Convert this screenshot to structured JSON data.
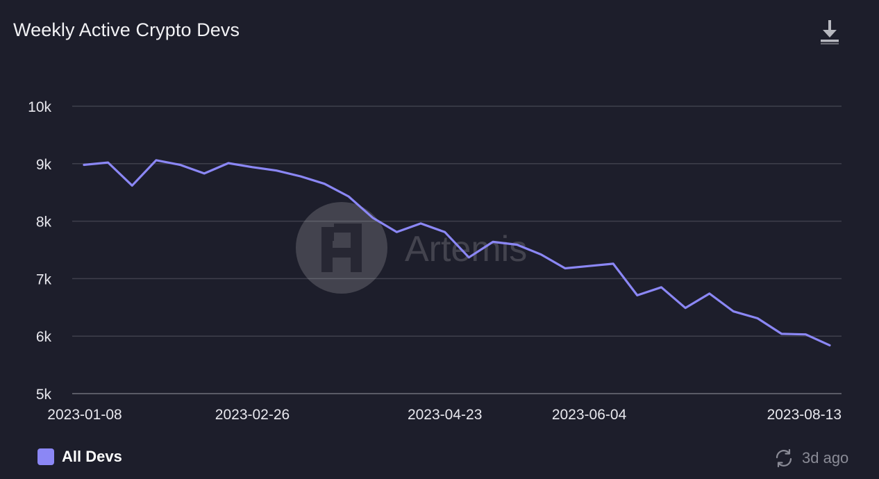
{
  "header": {
    "title": "Weekly Active Crypto Devs",
    "download_icon": "download-icon"
  },
  "watermark": {
    "text": "Artemis",
    "logo_icon": "artemis-logo-icon"
  },
  "chart_data": {
    "type": "line",
    "title": "Weekly Active Crypto Devs",
    "xlabel": "",
    "ylabel": "",
    "ylim": [
      5000,
      10000
    ],
    "y_ticks": [
      {
        "value": 10000,
        "label": "10k"
      },
      {
        "value": 9000,
        "label": "9k"
      },
      {
        "value": 8000,
        "label": "8k"
      },
      {
        "value": 7000,
        "label": "7k"
      },
      {
        "value": 6000,
        "label": "6k"
      },
      {
        "value": 5000,
        "label": "5k"
      }
    ],
    "x_tick_labels": [
      "2023-01-08",
      "2023-02-26",
      "2023-04-23",
      "2023-06-04",
      "2023-08-13"
    ],
    "grid": true,
    "legend_position": "bottom-left",
    "x": [
      "2023-01-08",
      "2023-01-15",
      "2023-01-22",
      "2023-01-29",
      "2023-02-05",
      "2023-02-12",
      "2023-02-19",
      "2023-02-26",
      "2023-03-05",
      "2023-03-12",
      "2023-03-19",
      "2023-03-26",
      "2023-04-02",
      "2023-04-09",
      "2023-04-16",
      "2023-04-23",
      "2023-04-30",
      "2023-05-07",
      "2023-05-14",
      "2023-05-21",
      "2023-05-28",
      "2023-06-04",
      "2023-06-11",
      "2023-06-18",
      "2023-06-25",
      "2023-07-02",
      "2023-07-09",
      "2023-07-16",
      "2023-07-23",
      "2023-07-30",
      "2023-08-06",
      "2023-08-13"
    ],
    "series": [
      {
        "name": "All Devs",
        "color": "#8b87f5",
        "values": [
          8980,
          9020,
          8620,
          9060,
          8980,
          8830,
          9010,
          8940,
          8880,
          8780,
          8650,
          8430,
          8060,
          7810,
          7960,
          7810,
          7370,
          7640,
          7590,
          7420,
          7180,
          7220,
          7260,
          6710,
          6850,
          6490,
          6740,
          6430,
          6310,
          6040,
          6030,
          5840
        ]
      }
    ]
  },
  "legend": {
    "items": [
      {
        "label": "All Devs",
        "color": "#8b87f5"
      }
    ]
  },
  "footer": {
    "refresh_icon": "refresh-icon",
    "updated_text": "3d ago"
  }
}
